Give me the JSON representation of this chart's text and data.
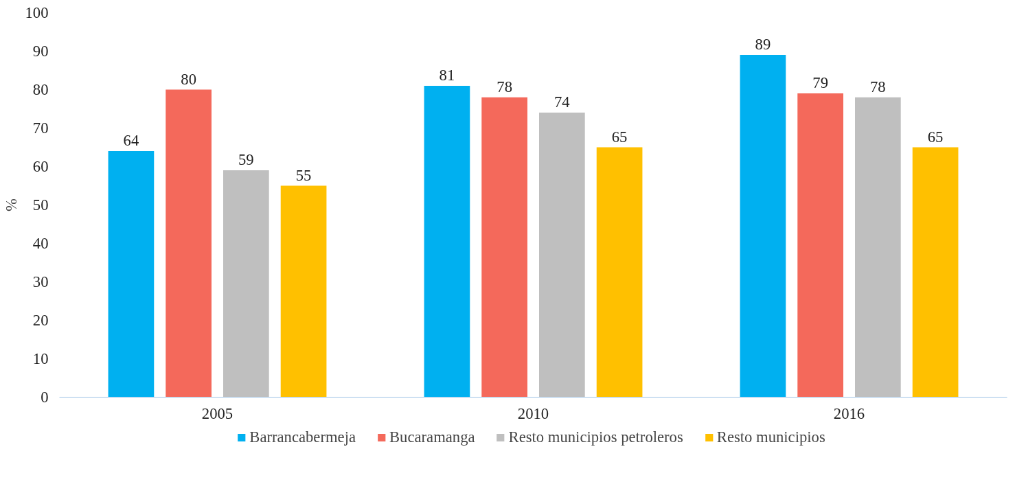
{
  "chart_data": {
    "type": "bar",
    "ylabel": "%",
    "categories": [
      "2005",
      "2010",
      "2016"
    ],
    "series": [
      {
        "name": "Barrancabermeja",
        "color": "#00b0f0",
        "values": [
          64,
          81,
          89
        ]
      },
      {
        "name": "Bucaramanga",
        "color": "#f4695b",
        "values": [
          80,
          78,
          79
        ]
      },
      {
        "name": "Resto municipios petroleros",
        "color": "#bfbfbf",
        "values": [
          59,
          74,
          78
        ]
      },
      {
        "name": "Resto municipios",
        "color": "#ffc000",
        "values": [
          55,
          65,
          65
        ]
      }
    ],
    "ylim": [
      0,
      100
    ],
    "yticks": [
      0,
      10,
      20,
      30,
      40,
      50,
      60,
      70,
      80,
      90,
      100
    ],
    "grid": false,
    "legend": "bottom",
    "data_labels": true
  }
}
